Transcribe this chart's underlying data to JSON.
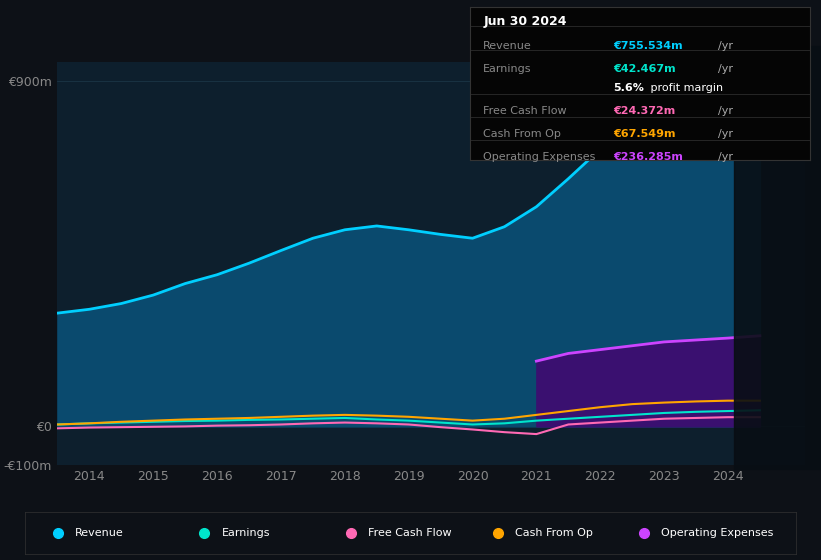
{
  "bg_color": "#0d1117",
  "plot_bg_color": "#0d1f2d",
  "title_date": "Jun 30 2024",
  "table_rows": [
    {
      "label": "Revenue",
      "value": "€755.534m",
      "suffix": "/yr",
      "value_color": "#00cfff",
      "is_margin": false
    },
    {
      "label": "Earnings",
      "value": "€42.467m",
      "suffix": "/yr",
      "value_color": "#00e5cc",
      "is_margin": false
    },
    {
      "label": "",
      "value": "5.6%",
      "suffix": " profit margin",
      "value_color": "#ffffff",
      "is_margin": true
    },
    {
      "label": "Free Cash Flow",
      "value": "€24.372m",
      "suffix": "/yr",
      "value_color": "#ff69b4",
      "is_margin": false
    },
    {
      "label": "Cash From Op",
      "value": "€67.549m",
      "suffix": "/yr",
      "value_color": "#ffa500",
      "is_margin": false
    },
    {
      "label": "Operating Expenses",
      "value": "€236.285m",
      "suffix": "/yr",
      "value_color": "#cc44ff",
      "is_margin": false
    }
  ],
  "years": [
    2013.5,
    2014.0,
    2014.5,
    2015.0,
    2015.5,
    2016.0,
    2016.5,
    2017.0,
    2017.5,
    2018.0,
    2018.5,
    2019.0,
    2019.5,
    2020.0,
    2020.5,
    2021.0,
    2021.5,
    2022.0,
    2022.5,
    2023.0,
    2023.5,
    2024.0,
    2024.5
  ],
  "revenue": [
    295,
    305,
    320,
    342,
    372,
    395,
    425,
    458,
    490,
    512,
    522,
    512,
    500,
    490,
    520,
    572,
    645,
    722,
    790,
    760,
    730,
    712,
    755
  ],
  "earnings": [
    5,
    8,
    10,
    12,
    14,
    15,
    17,
    18,
    20,
    22,
    18,
    15,
    10,
    5,
    8,
    15,
    20,
    25,
    30,
    35,
    38,
    40,
    42
  ],
  "free_cash_flow": [
    -5,
    -3,
    -2,
    -1,
    0,
    2,
    3,
    5,
    8,
    10,
    8,
    5,
    -2,
    -8,
    -15,
    -20,
    5,
    10,
    15,
    20,
    22,
    24,
    24
  ],
  "cash_from_op": [
    5,
    8,
    12,
    15,
    18,
    20,
    22,
    25,
    28,
    30,
    28,
    25,
    20,
    15,
    20,
    30,
    40,
    50,
    58,
    62,
    65,
    67,
    67
  ],
  "operating_expenses_years": [
    2021.0,
    2021.5,
    2022.0,
    2022.5,
    2023.0,
    2023.5,
    2024.0,
    2024.5
  ],
  "operating_expenses": [
    170,
    190,
    200,
    210,
    220,
    225,
    230,
    236
  ],
  "ylim": [
    -100,
    950
  ],
  "yticks": [
    -100,
    0,
    900
  ],
  "ytick_labels": [
    "-€100m",
    "€0",
    "€900m"
  ],
  "xlim": [
    2013.5,
    2025.2
  ],
  "xticks": [
    2014,
    2015,
    2016,
    2017,
    2018,
    2019,
    2020,
    2021,
    2022,
    2023,
    2024
  ],
  "legend_items": [
    {
      "label": "Revenue",
      "color": "#00cfff"
    },
    {
      "label": "Earnings",
      "color": "#00e5cc"
    },
    {
      "label": "Free Cash Flow",
      "color": "#ff69b4"
    },
    {
      "label": "Cash From Op",
      "color": "#ffa500"
    },
    {
      "label": "Operating Expenses",
      "color": "#cc44ff"
    }
  ],
  "grid_color": "#1e3a4a",
  "revenue_fill_color": "#0a4a6e",
  "revenue_line_color": "#00cfff",
  "earnings_line_color": "#00e5cc",
  "fcf_line_color": "#ff69b4",
  "cfop_line_color": "#ffa500",
  "opex_fill_color": "#3a1070",
  "opex_line_color": "#cc44ff"
}
